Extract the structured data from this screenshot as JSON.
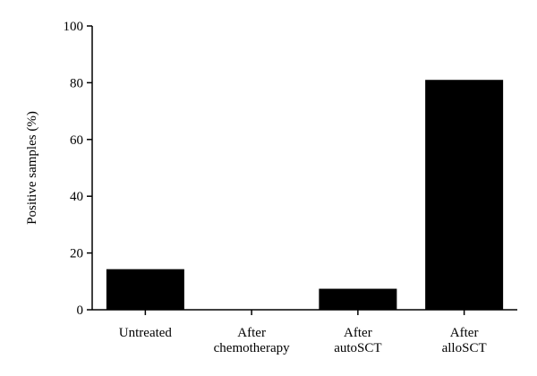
{
  "chart_data": {
    "type": "bar",
    "categories": [
      [
        "Untreated"
      ],
      [
        "After",
        "chemotherapy"
      ],
      [
        "After",
        "autoSCT"
      ],
      [
        "After",
        "alloSCT"
      ]
    ],
    "values": [
      14.3,
      0,
      7.4,
      81.0
    ],
    "title": "",
    "xlabel": "",
    "ylabel": "Positive samples (%)",
    "ylim": [
      0,
      100
    ],
    "yticks": [
      0,
      20,
      40,
      60,
      80,
      100
    ],
    "grid": false,
    "bar_color": "#000000"
  }
}
